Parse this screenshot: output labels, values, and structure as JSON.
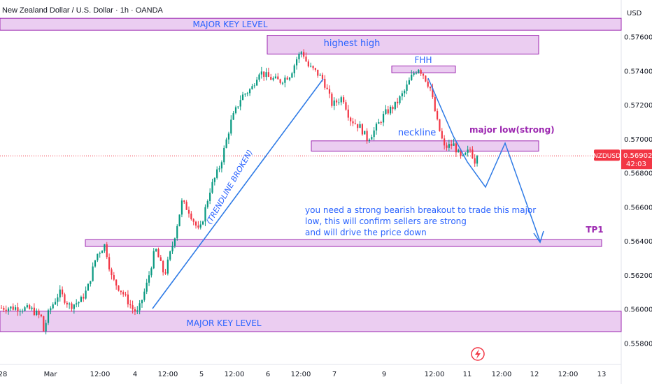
{
  "header": {
    "title": "New Zealand Dollar / U.S. Dollar · 1h · OANDA",
    "currency": "USD"
  },
  "price_badge": {
    "symbol": "NZDUSD",
    "price": "0.56902",
    "countdown": "42:03",
    "color": "#f23645"
  },
  "colors": {
    "up": "#089981",
    "down": "#f23645",
    "zone_fill": "#e8c4ee",
    "zone_stroke": "#9c27b0",
    "annotation_blue": "#2962ff",
    "annotation_magenta": "#9c27b0",
    "arrow_blue": "#2f7be6"
  },
  "chart_data": {
    "type": "candlestick",
    "title": "New Zealand Dollar / U.S. Dollar · 1h · OANDA",
    "y_axis": {
      "unit": "USD",
      "ticks": [
        "0.57600",
        "0.57400",
        "0.57200",
        "0.57000",
        "0.56800",
        "0.56600",
        "0.56400",
        "0.56200",
        "0.56000",
        "0.55800"
      ],
      "range": [
        0.5575,
        0.5772
      ]
    },
    "x_axis": {
      "ticks": [
        "28",
        "Mar",
        "12:00",
        "4",
        "12:00",
        "5",
        "12:00",
        "6",
        "12:00",
        "7",
        "9",
        "12:00",
        "11",
        "12:00",
        "12",
        "12:00",
        "13"
      ]
    },
    "last_price": 0.56902,
    "price_path": [
      [
        0,
        0.5601
      ],
      [
        25,
        0.5601
      ],
      [
        45,
        0.56
      ],
      [
        60,
        0.5595
      ],
      [
        62,
        0.5587
      ],
      [
        70,
        0.5599
      ],
      [
        85,
        0.561
      ],
      [
        100,
        0.5602
      ],
      [
        115,
        0.5605
      ],
      [
        125,
        0.5612
      ],
      [
        138,
        0.5632
      ],
      [
        150,
        0.5638
      ],
      [
        160,
        0.5618
      ],
      [
        175,
        0.561
      ],
      [
        190,
        0.56
      ],
      [
        197,
        0.5598
      ],
      [
        210,
        0.5615
      ],
      [
        222,
        0.5636
      ],
      [
        235,
        0.562
      ],
      [
        248,
        0.564
      ],
      [
        260,
        0.5663
      ],
      [
        270,
        0.5658
      ],
      [
        285,
        0.5645
      ],
      [
        300,
        0.567
      ],
      [
        315,
        0.5685
      ],
      [
        330,
        0.571
      ],
      [
        345,
        0.5725
      ],
      [
        360,
        0.573
      ],
      [
        370,
        0.574
      ],
      [
        385,
        0.5736
      ],
      [
        400,
        0.5734
      ],
      [
        415,
        0.5738
      ],
      [
        425,
        0.5748
      ],
      [
        432,
        0.5752
      ],
      [
        440,
        0.5743
      ],
      [
        450,
        0.574
      ],
      [
        462,
        0.5735
      ],
      [
        475,
        0.572
      ],
      [
        490,
        0.5725
      ],
      [
        500,
        0.5712
      ],
      [
        515,
        0.5707
      ],
      [
        525,
        0.57
      ],
      [
        535,
        0.5705
      ],
      [
        550,
        0.5715
      ],
      [
        565,
        0.572
      ],
      [
        578,
        0.5728
      ],
      [
        590,
        0.5738
      ],
      [
        598,
        0.5742
      ],
      [
        605,
        0.5738
      ],
      [
        615,
        0.573
      ],
      [
        625,
        0.571
      ],
      [
        635,
        0.5695
      ],
      [
        648,
        0.5697
      ],
      [
        660,
        0.5688
      ],
      [
        672,
        0.5694
      ],
      [
        680,
        0.5686
      ],
      [
        684,
        0.56902
      ]
    ],
    "zones": [
      {
        "id": "major-key-top",
        "label": "MAJOR KEY LEVEL",
        "price_top": 0.5771,
        "price_bottom": 0.5764
      },
      {
        "id": "highest-high",
        "label": "highest high",
        "price_top": 0.5761,
        "price_bottom": 0.575
      },
      {
        "id": "fhh",
        "label": "FHH",
        "price_top": 0.5743,
        "price_bottom": 0.5739
      },
      {
        "id": "neckline",
        "label": "neckline",
        "price_top": 0.5699,
        "price_bottom": 0.5693
      },
      {
        "id": "tp1",
        "label": "TP1",
        "price_top": 0.5641,
        "price_bottom": 0.5637
      },
      {
        "id": "major-key-bottom",
        "label": "MAJOR KEY LEVEL",
        "price_top": 0.5599,
        "price_bottom": 0.5587
      }
    ],
    "annotations": {
      "trendline": "(TRENDLINE BROKEN)",
      "major_low": "major low(strong)",
      "note_lines": [
        "you need a strong bearish breakout to trade this major",
        "low, this will confirm sellers are strong",
        "and will drive the price down"
      ],
      "tp": "TP1"
    }
  }
}
